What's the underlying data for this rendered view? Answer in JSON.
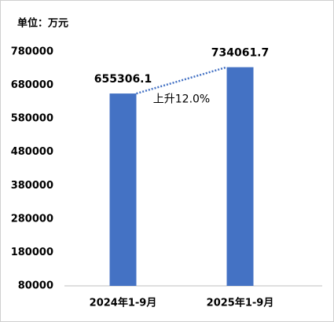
{
  "chart_data": {
    "type": "bar",
    "unit_label": "单位：万元",
    "categories": [
      "2024年1-9月",
      "2025年1-9月"
    ],
    "values": [
      655306.1,
      734061.7
    ],
    "color": "#4472c4",
    "annotation": "上升12.0%",
    "ylim": [
      80000,
      780000
    ],
    "yticks": [
      80000,
      180000,
      280000,
      380000,
      480000,
      580000,
      680000,
      780000
    ],
    "grid": false
  }
}
